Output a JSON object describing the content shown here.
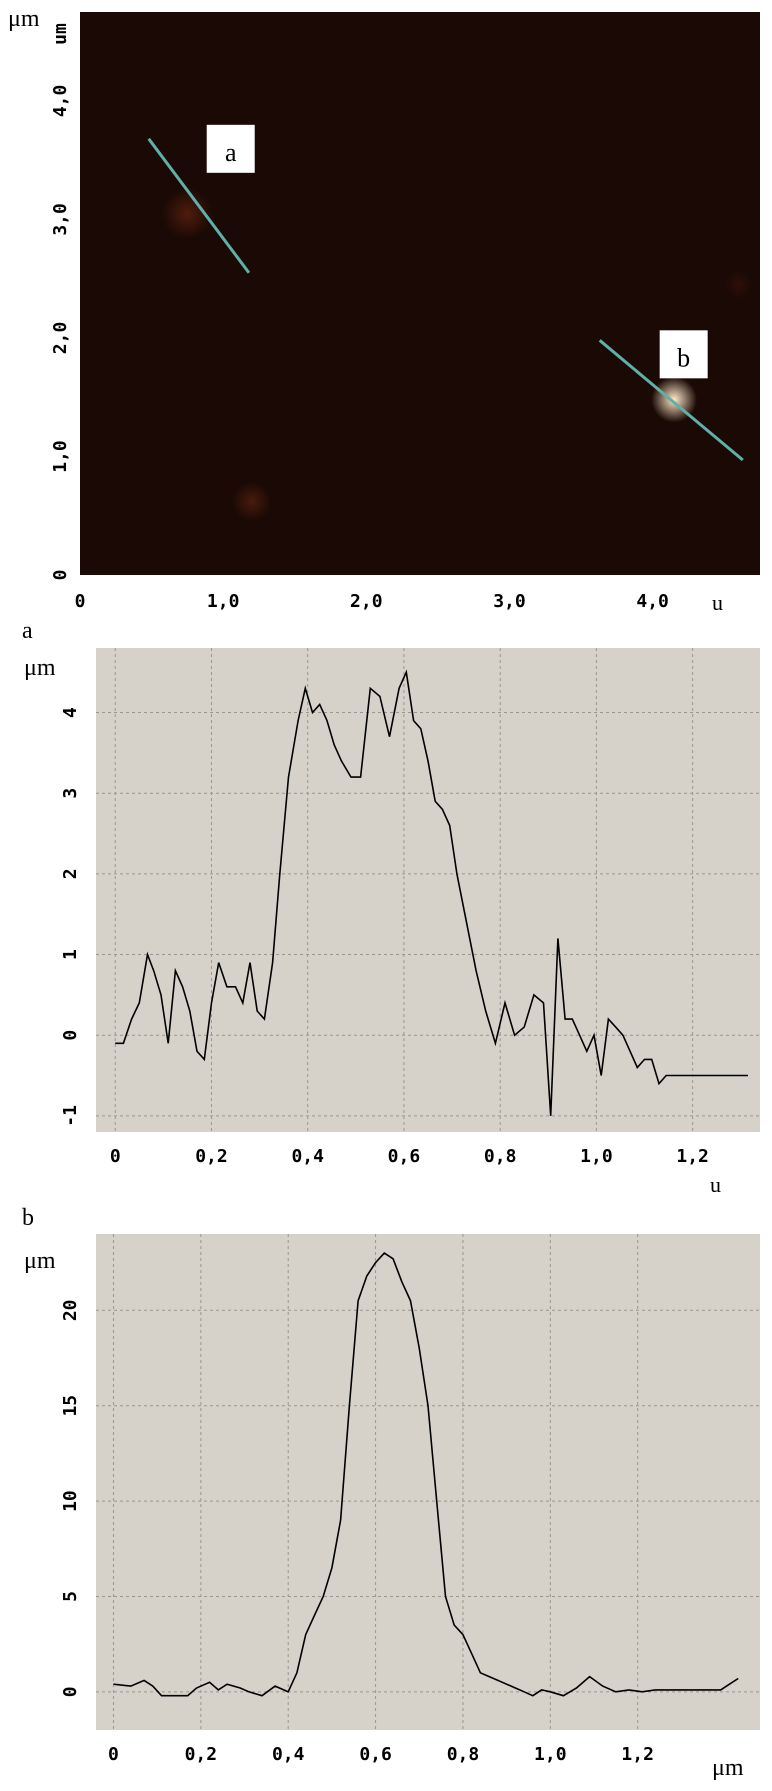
{
  "map": {
    "unit_left": "μm",
    "unit_top": "um",
    "unit_bottom_right": "u",
    "x_ticks": [
      0,
      1.0,
      2.0,
      3.0,
      4.0
    ],
    "x_tick_labels": [
      "0",
      "1,0",
      "2,0",
      "3,0",
      "4,0"
    ],
    "y_ticks": [
      0,
      1.0,
      2.0,
      3.0,
      4.0
    ],
    "y_tick_labels": [
      "0",
      "1,0",
      "2,0",
      "3,0",
      "4,0"
    ],
    "xlim": [
      0,
      4.75
    ],
    "ylim": [
      0,
      4.75
    ],
    "background_color": "#1a0905",
    "line_color": "#5fb0a8",
    "profiles": [
      {
        "label": "a",
        "x1": 0.48,
        "y1": 3.68,
        "x2": 1.18,
        "y2": 2.55
      },
      {
        "label": "b",
        "x1": 3.63,
        "y1": 1.98,
        "x2": 4.63,
        "y2": 0.97
      }
    ],
    "features": [
      {
        "x": 0.75,
        "y": 3.05,
        "r": 0.18,
        "color": "#7a2c14",
        "opacity": 0.55
      },
      {
        "x": 4.15,
        "y": 1.48,
        "r": 0.16,
        "color": "#ffe9c8",
        "opacity": 1.0
      },
      {
        "x": 1.2,
        "y": 0.62,
        "r": 0.14,
        "color": "#6e2a12",
        "opacity": 0.55
      },
      {
        "x": 4.6,
        "y": 2.45,
        "r": 0.1,
        "color": "#4e1a0c",
        "opacity": 0.4
      }
    ]
  },
  "charts_meta": {
    "a_label": "a",
    "b_label": "b",
    "a_unit_y": "μm",
    "a_unit_x": "u",
    "b_unit_y": "μm",
    "b_unit_x": "μm"
  },
  "chart_data": [
    {
      "type": "line",
      "name": "a",
      "xlim": [
        -0.04,
        1.34
      ],
      "ylim": [
        -1.2,
        4.8
      ],
      "x_ticks": [
        0,
        0.2,
        0.4,
        0.6,
        0.8,
        1.0,
        1.2
      ],
      "x_tick_labels": [
        "0",
        "0,2",
        "0,4",
        "0,6",
        "0,8",
        "1,0",
        "1,2"
      ],
      "y_ticks": [
        -1,
        0,
        1,
        2,
        3,
        4
      ],
      "y_tick_labels": [
        "-1",
        "0",
        "1",
        "2",
        "3",
        "4"
      ],
      "grid": true,
      "x": [
        0,
        0.017,
        0.034,
        0.05,
        0.067,
        0.08,
        0.095,
        0.11,
        0.125,
        0.14,
        0.155,
        0.17,
        0.185,
        0.2,
        0.215,
        0.232,
        0.25,
        0.265,
        0.28,
        0.295,
        0.31,
        0.327,
        0.342,
        0.36,
        0.38,
        0.395,
        0.41,
        0.425,
        0.44,
        0.455,
        0.47,
        0.49,
        0.51,
        0.53,
        0.55,
        0.57,
        0.59,
        0.605,
        0.62,
        0.635,
        0.65,
        0.665,
        0.68,
        0.695,
        0.71,
        0.73,
        0.75,
        0.77,
        0.79,
        0.81,
        0.83,
        0.85,
        0.87,
        0.89,
        0.905,
        0.92,
        0.935,
        0.95,
        0.965,
        0.98,
        0.995,
        1.01,
        1.025,
        1.04,
        1.055,
        1.07,
        1.085,
        1.1,
        1.115,
        1.13,
        1.145,
        1.16,
        1.175,
        1.19,
        1.21,
        1.225,
        1.24,
        1.255,
        1.27,
        1.285,
        1.3,
        1.315
      ],
      "y": [
        -0.1,
        -0.1,
        0.2,
        0.4,
        1.0,
        0.8,
        0.5,
        -0.1,
        0.8,
        0.6,
        0.3,
        -0.2,
        -0.3,
        0.4,
        0.9,
        0.6,
        0.6,
        0.4,
        0.9,
        0.3,
        0.2,
        0.9,
        2.0,
        3.2,
        3.9,
        4.3,
        4.0,
        4.1,
        3.9,
        3.6,
        3.4,
        3.2,
        3.2,
        4.3,
        4.2,
        3.7,
        4.3,
        4.5,
        3.9,
        3.8,
        3.4,
        2.9,
        2.8,
        2.6,
        2.0,
        1.4,
        0.8,
        0.3,
        -0.1,
        0.4,
        0.0,
        0.1,
        0.5,
        0.4,
        -1.0,
        1.2,
        0.2,
        0.2,
        0.0,
        -0.2,
        0.0,
        -0.5,
        0.2,
        0.1,
        0.0,
        -0.2,
        -0.4,
        -0.3,
        -0.3,
        -0.6,
        -0.5,
        -0.5,
        -0.5,
        -0.5,
        -0.5,
        -0.5,
        -0.5,
        -0.5,
        -0.5,
        -0.5,
        -0.5,
        -0.5
      ]
    },
    {
      "type": "line",
      "name": "b",
      "xlim": [
        -0.04,
        1.48
      ],
      "ylim": [
        -2,
        24
      ],
      "x_ticks": [
        0,
        0.2,
        0.4,
        0.6,
        0.8,
        1.0,
        1.2
      ],
      "x_tick_labels": [
        "0",
        "0,2",
        "0,4",
        "0,6",
        "0,8",
        "1,0",
        "1,2"
      ],
      "y_ticks": [
        0,
        5,
        10,
        15,
        20
      ],
      "y_tick_labels": [
        "0",
        "5",
        "10",
        "15",
        "20"
      ],
      "grid": true,
      "x": [
        0,
        0.04,
        0.07,
        0.09,
        0.11,
        0.13,
        0.17,
        0.19,
        0.22,
        0.24,
        0.26,
        0.29,
        0.31,
        0.34,
        0.37,
        0.4,
        0.42,
        0.44,
        0.46,
        0.48,
        0.5,
        0.52,
        0.54,
        0.56,
        0.58,
        0.6,
        0.62,
        0.64,
        0.66,
        0.68,
        0.7,
        0.72,
        0.74,
        0.76,
        0.78,
        0.8,
        0.82,
        0.84,
        0.86,
        0.88,
        0.9,
        0.92,
        0.94,
        0.96,
        0.98,
        1.0,
        1.03,
        1.06,
        1.09,
        1.12,
        1.15,
        1.18,
        1.21,
        1.24,
        1.27,
        1.3,
        1.33,
        1.36,
        1.39,
        1.41,
        1.43
      ],
      "y": [
        0.4,
        0.3,
        0.6,
        0.3,
        -0.2,
        -0.2,
        -0.2,
        0.2,
        0.5,
        0.1,
        0.4,
        0.2,
        0.0,
        -0.2,
        0.3,
        0.0,
        1.0,
        3.0,
        4.0,
        5.0,
        6.5,
        9.0,
        15.0,
        20.5,
        21.8,
        22.5,
        23.0,
        22.7,
        21.5,
        20.5,
        18.0,
        15.0,
        10.0,
        5.0,
        3.5,
        3.0,
        2.0,
        1.0,
        0.8,
        0.6,
        0.4,
        0.2,
        0.0,
        -0.2,
        0.1,
        0.0,
        -0.2,
        0.2,
        0.8,
        0.3,
        0.0,
        0.1,
        0.0,
        0.1,
        0.1,
        0.1,
        0.1,
        0.1,
        0.1,
        0.4,
        0.7
      ]
    }
  ]
}
